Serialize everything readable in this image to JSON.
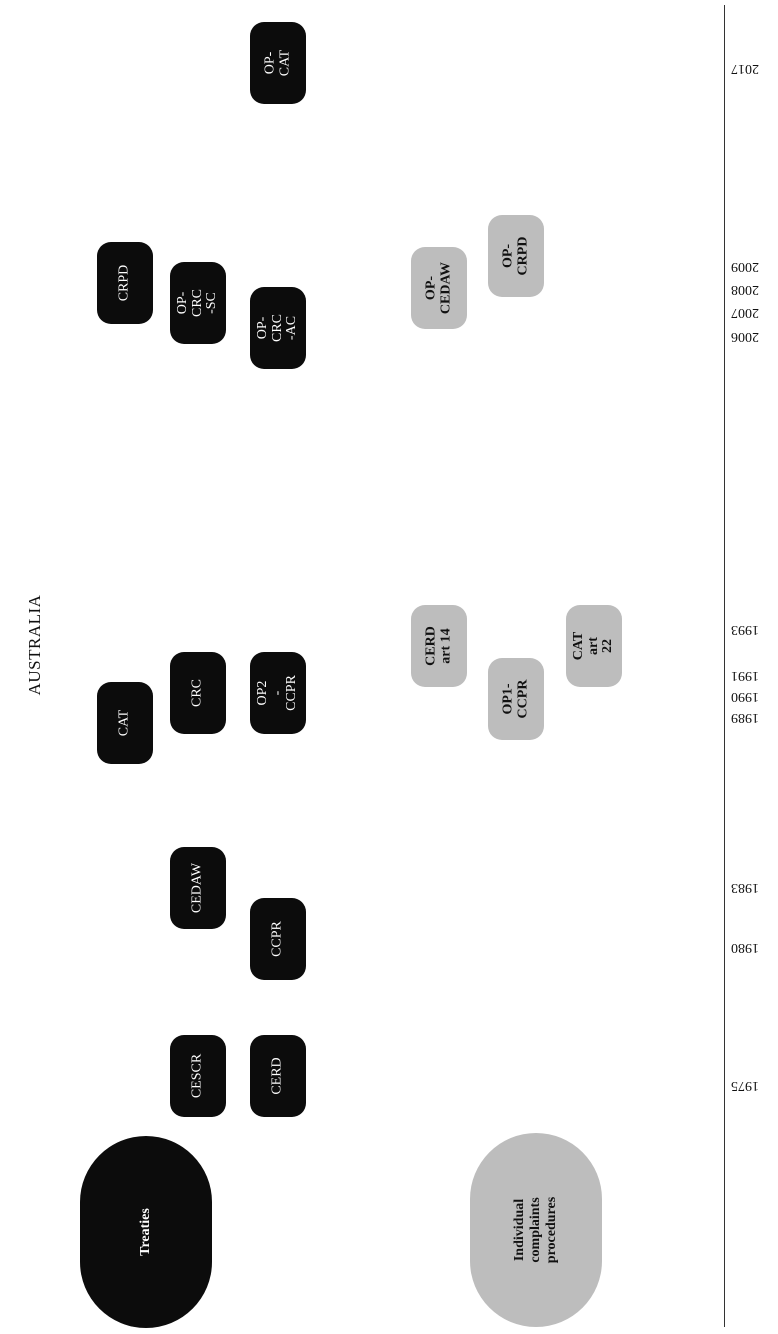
{
  "title": "AUSTRALIA",
  "categories": {
    "treaties": "Treaties",
    "complaints": "Individual\ncomplaints\nprocedures"
  },
  "colors": {
    "treaty": "#0c0c0c",
    "complaint": "#bdbdbd"
  },
  "years": [
    "1975",
    "1980",
    "1983",
    "1989",
    "1990",
    "1991",
    "1993",
    "2006",
    "2007",
    "2008",
    "2009",
    "2017"
  ],
  "treaties": [
    "CESCR",
    "CERD",
    "CCPR",
    "CEDAW",
    "CAT",
    "CRC",
    "OP2\n-CCPR",
    "CRPD",
    "OP-CRC\n-SC",
    "OP-CRC\n-AC",
    "OP-CAT"
  ],
  "complaints": [
    "CERD\nart 14",
    "OP1-\nCCPR",
    "CAT\nart 22",
    "OP-\nCEDAW",
    "OP-\nCRPD"
  ]
}
